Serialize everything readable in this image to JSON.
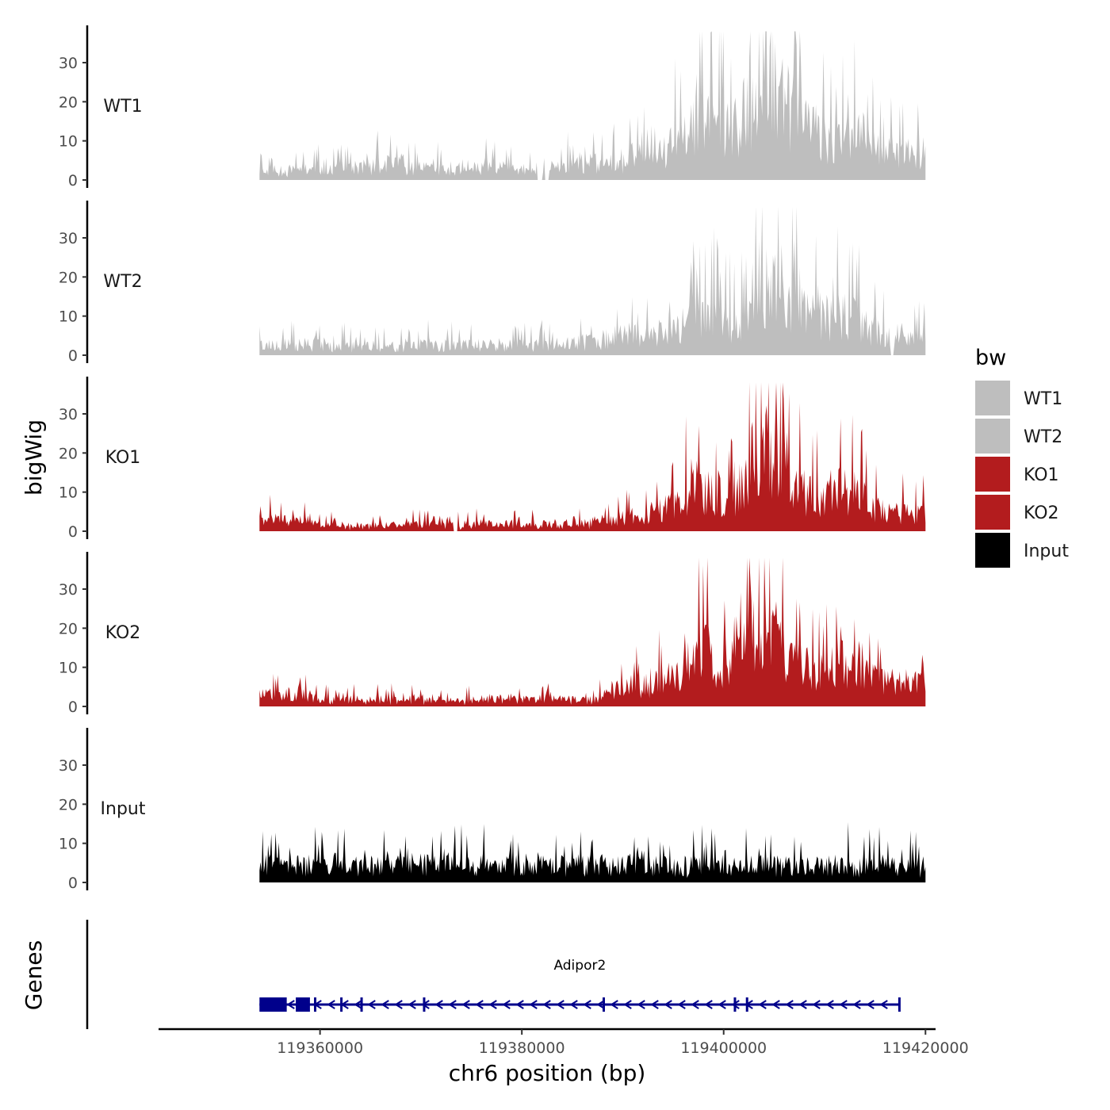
{
  "chart_data": {
    "type": "area",
    "layout": "stacked tracks",
    "chromosome": "chr6",
    "xlabel": "chr6 position (bp)",
    "ylabel": "bigWig",
    "xlim": [
      119344000,
      119421000
    ],
    "data_range": [
      119354000,
      119420000
    ],
    "x_ticks": [
      119360000,
      119380000,
      119400000,
      119420000
    ],
    "x_tick_labels": [
      "119360000",
      "119380000",
      "119400000",
      "119420000"
    ],
    "ylim": [
      0,
      39
    ],
    "y_ticks": [
      0,
      10,
      20,
      30
    ],
    "y_tick_labels": [
      "0",
      "10",
      "20",
      "30"
    ],
    "legend": {
      "title": "bw",
      "position": "right",
      "entries": [
        {
          "label": "WT1",
          "color": "#bebebe"
        },
        {
          "label": "WT2",
          "color": "#bebebe"
        },
        {
          "label": "KO1",
          "color": "#b31c1e"
        },
        {
          "label": "KO2",
          "color": "#b31c1e"
        },
        {
          "label": "Input",
          "color": "#000000"
        }
      ]
    },
    "series": [
      {
        "name": "WT1",
        "color": "#bebebe",
        "anchors": [
          [
            119354000,
            2.5
          ],
          [
            119360000,
            3
          ],
          [
            119365000,
            4
          ],
          [
            119368000,
            5
          ],
          [
            119372000,
            3
          ],
          [
            119376000,
            4
          ],
          [
            119380000,
            3
          ],
          [
            119384000,
            4
          ],
          [
            119388000,
            5
          ],
          [
            119392000,
            7
          ],
          [
            119395000,
            10
          ],
          [
            119397000,
            16
          ],
          [
            119399000,
            18
          ],
          [
            119401000,
            14
          ],
          [
            119403000,
            24
          ],
          [
            119404000,
            30
          ],
          [
            119406000,
            22
          ],
          [
            119408000,
            15
          ],
          [
            119411000,
            11
          ],
          [
            119413000,
            14
          ],
          [
            119416000,
            8
          ],
          [
            119420000,
            7
          ]
        ],
        "peaks": [
          [
            119362500,
            9
          ],
          [
            119372000,
            8
          ],
          [
            119378500,
            9
          ],
          [
            119397000,
            21
          ],
          [
            119404000,
            35
          ],
          [
            119405500,
            30
          ],
          [
            119412800,
            20
          ],
          [
            119419800,
            12
          ]
        ],
        "gaps": [
          [
            119381500,
            119382000
          ],
          [
            119382300,
            119382700
          ]
        ],
        "noise": 0.8,
        "seed": 11
      },
      {
        "name": "WT2",
        "color": "#bebebe",
        "anchors": [
          [
            119354000,
            3
          ],
          [
            119360000,
            3
          ],
          [
            119365000,
            2.5
          ],
          [
            119370000,
            3
          ],
          [
            119375000,
            3
          ],
          [
            119380000,
            3
          ],
          [
            119384000,
            3
          ],
          [
            119387000,
            4
          ],
          [
            119390000,
            6
          ],
          [
            119393000,
            6
          ],
          [
            119396000,
            9
          ],
          [
            119397500,
            12
          ],
          [
            119399000,
            11
          ],
          [
            119401000,
            9
          ],
          [
            119403000,
            15
          ],
          [
            119404500,
            20
          ],
          [
            119406000,
            16
          ],
          [
            119408000,
            13
          ],
          [
            119411000,
            12
          ],
          [
            119413000,
            10
          ],
          [
            119416000,
            6
          ],
          [
            119420000,
            5
          ]
        ],
        "peaks": [
          [
            119354000,
            7
          ],
          [
            119398000,
            17
          ],
          [
            119403500,
            29
          ],
          [
            119405800,
            21
          ],
          [
            119408800,
            19
          ],
          [
            119412000,
            18
          ],
          [
            119419800,
            9
          ]
        ],
        "gaps": [
          [
            119416500,
            119416900
          ]
        ],
        "noise": 0.8,
        "seed": 23
      },
      {
        "name": "KO1",
        "color": "#b31c1e",
        "anchors": [
          [
            119354000,
            4
          ],
          [
            119357000,
            3
          ],
          [
            119360000,
            2
          ],
          [
            119365000,
            1.5
          ],
          [
            119370000,
            2
          ],
          [
            119375000,
            2
          ],
          [
            119380000,
            2
          ],
          [
            119385000,
            2
          ],
          [
            119389000,
            3
          ],
          [
            119392000,
            5
          ],
          [
            119395000,
            7
          ],
          [
            119397000,
            14
          ],
          [
            119399000,
            12
          ],
          [
            119401000,
            8
          ],
          [
            119403000,
            22
          ],
          [
            119405000,
            25
          ],
          [
            119407000,
            14
          ],
          [
            119409000,
            10
          ],
          [
            119411000,
            12
          ],
          [
            119413000,
            10
          ],
          [
            119416000,
            6
          ],
          [
            119420000,
            5
          ]
        ],
        "peaks": [
          [
            119358500,
            10
          ],
          [
            119397800,
            25
          ],
          [
            119400500,
            20
          ],
          [
            119404300,
            38
          ],
          [
            119406500,
            21
          ],
          [
            119411500,
            19
          ],
          [
            119413000,
            20
          ],
          [
            119419800,
            16
          ]
        ],
        "gaps": [
          [
            119373200,
            119373600
          ]
        ],
        "noise": 0.8,
        "seed": 37
      },
      {
        "name": "KO2",
        "color": "#b31c1e",
        "anchors": [
          [
            119354000,
            3
          ],
          [
            119357000,
            4
          ],
          [
            119360000,
            2
          ],
          [
            119365000,
            2
          ],
          [
            119370000,
            2
          ],
          [
            119375000,
            2
          ],
          [
            119380000,
            2
          ],
          [
            119384000,
            2
          ],
          [
            119387000,
            2
          ],
          [
            119390000,
            5
          ],
          [
            119393000,
            7
          ],
          [
            119396000,
            9
          ],
          [
            119397500,
            18
          ],
          [
            119399000,
            14
          ],
          [
            119401000,
            12
          ],
          [
            119403000,
            20
          ],
          [
            119405000,
            20
          ],
          [
            119407000,
            13
          ],
          [
            119409000,
            10
          ],
          [
            119411000,
            13
          ],
          [
            119413000,
            11
          ],
          [
            119416000,
            7
          ],
          [
            119420000,
            6
          ]
        ],
        "peaks": [
          [
            119358000,
            12
          ],
          [
            119397500,
            29
          ],
          [
            119403000,
            27
          ],
          [
            119405000,
            25
          ],
          [
            119411800,
            17
          ],
          [
            119419800,
            12
          ]
        ],
        "gaps": [],
        "noise": 0.8,
        "seed": 51
      },
      {
        "name": "Input",
        "color": "#000000",
        "anchors": [
          [
            119354000,
            5
          ],
          [
            119360000,
            5
          ],
          [
            119365000,
            5
          ],
          [
            119370000,
            5
          ],
          [
            119375000,
            5
          ],
          [
            119380000,
            5
          ],
          [
            119385000,
            5
          ],
          [
            119390000,
            5
          ],
          [
            119395000,
            5
          ],
          [
            119400000,
            5
          ],
          [
            119405000,
            5
          ],
          [
            119410000,
            5
          ],
          [
            119415000,
            5
          ],
          [
            119420000,
            5
          ]
        ],
        "peaks": [
          [
            119372000,
            14
          ],
          [
            119388000,
            11
          ],
          [
            119394000,
            12
          ],
          [
            119418500,
            14
          ]
        ],
        "gaps": [],
        "noise": 1.1,
        "seed": 77
      }
    ],
    "genes_track": {
      "title": "Genes",
      "color": "#00008b",
      "genes": [
        {
          "name": "Adipor2",
          "strand": "-",
          "start": 119354000,
          "end": 119417500,
          "exons": [
            [
              119354000,
              119356700
            ],
            [
              119357600,
              119359000
            ],
            [
              119359400,
              119359500
            ],
            [
              119362000,
              119362080
            ],
            [
              119364000,
              119364080
            ],
            [
              119370200,
              119370300
            ],
            [
              119388000,
              119388100
            ],
            [
              119401000,
              119401100
            ],
            [
              119402200,
              119402300
            ],
            [
              119417300,
              119417500
            ]
          ]
        }
      ]
    }
  }
}
